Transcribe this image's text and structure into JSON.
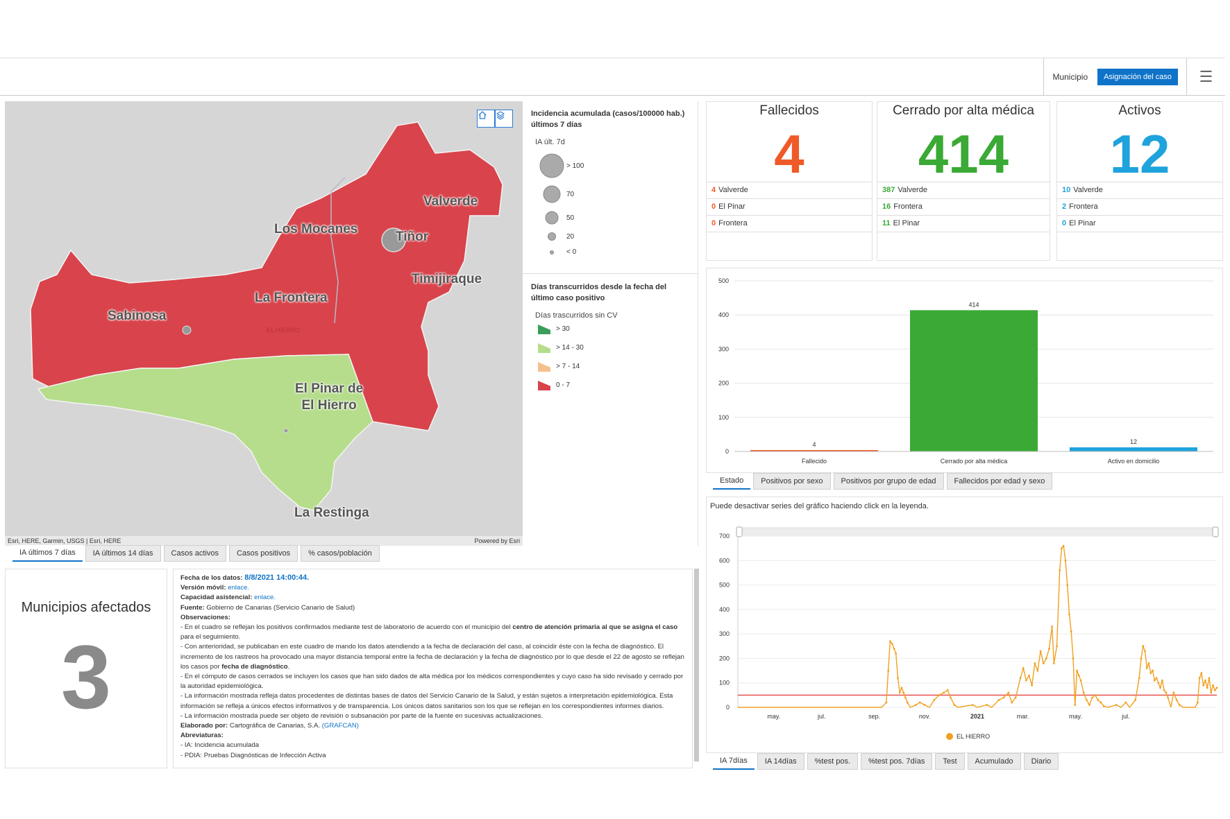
{
  "topbar": {
    "selector_label": "Municipio",
    "selector_button": "Asignación del caso",
    "menu_icon": "hamburger-icon"
  },
  "map": {
    "labels": {
      "valverde": "Valverde",
      "tinor": "Tiñor",
      "los_mocanes": "Los Mocanes",
      "timijiraque": "Timijiraque",
      "la_frontera": "La Frontera",
      "sabinosa": "Sabinosa",
      "el_hierro_small": "EL HIERRO",
      "el_pinar_1": "El Pinar de",
      "el_pinar_2": "El Hierro",
      "la_restinga": "La Restinga"
    },
    "attribution_left": "Esri, HERE, Garmin, USGS | Esri, HERE",
    "attribution_right": "Powered by Esri",
    "colors": {
      "red": "#d9434b",
      "green": "#b5dd8b",
      "water": "#d6d6d6"
    }
  },
  "legend": {
    "incidence_title": "Incidencia acumulada (casos/100000 hab.) últimos 7 días",
    "incidence_sub": "IA últ. 7d",
    "incidence_classes": [
      "> 100",
      "70",
      "50",
      "20",
      "< 0"
    ],
    "days_title": "Días transcurridos desde la fecha del último caso positivo",
    "days_sub": "Días trascurridos sin CV",
    "days_classes": [
      {
        "label": "> 30",
        "color": "#3a9e5a"
      },
      {
        "label": "> 14 - 30",
        "color": "#b5dd8b"
      },
      {
        "label": "> 7 - 14",
        "color": "#f5c08e"
      },
      {
        "label": "0 - 7",
        "color": "#d9434b"
      }
    ]
  },
  "map_tabs": [
    "IA últimos 7 días",
    "IA últimos 14 días",
    "Casos activos",
    "Casos positivos",
    "% casos/población"
  ],
  "indicators": [
    {
      "title": "Fallecidos",
      "value": "4",
      "color": "#f05a28",
      "rows": [
        {
          "n": "4",
          "name": "Valverde"
        },
        {
          "n": "0",
          "name": "El Pinar"
        },
        {
          "n": "0",
          "name": "Frontera"
        }
      ]
    },
    {
      "title": "Cerrado por alta médica",
      "value": "414",
      "color": "#3aa935",
      "rows": [
        {
          "n": "387",
          "name": "Valverde"
        },
        {
          "n": "16",
          "name": "Frontera"
        },
        {
          "n": "11",
          "name": "El Pinar"
        }
      ]
    },
    {
      "title": "Activos",
      "value": "12",
      "color": "#1ea3dc",
      "rows": [
        {
          "n": "10",
          "name": "Valverde"
        },
        {
          "n": "2",
          "name": "Frontera"
        },
        {
          "n": "0",
          "name": "El Pinar"
        }
      ]
    }
  ],
  "municipios": {
    "title": "Municipios afectados",
    "value": "3"
  },
  "info": {
    "fecha_label": "Fecha de los datos:",
    "fecha_value": "8/8/2021 14:00:44.",
    "movil_label": "Versión móvil:",
    "movil_link": "enlace.",
    "capacidad_label": "Capacidad asistencial:",
    "capacidad_link": "enlace.",
    "fuente_label": "Fuente:",
    "fuente_value": "Gobierno de Canarias (Servicio Canario de Salud)",
    "obs_label": "Observaciones:",
    "obs1_a": "- En el cuadro se reflejan los positivos confirmados mediante test de laboratorio de acuerdo con el municipio del ",
    "obs1_b": "centro de atención primaria al que se asigna el caso",
    "obs1_c": " para el seguimiento.",
    "obs2_a": "- Con anterioridad, se publicaban en este cuadro de mando los datos atendiendo a la fecha de declaración del caso, al coincidir éste con la fecha de diagnóstico. El incremento de los rastreos ha provocado una mayor distancia temporal entre la fecha de declaración y la fecha de diagnóstico por lo que desde el 22 de agosto se reflejan los casos por ",
    "obs2_b": "fecha de diagnóstico",
    "obs2_c": ".",
    "obs3": "- En el cómputo de casos cerrados se incluyen los casos que han sido dados de alta médica por los médicos correspondientes y cuyo caso ha sido revisado y cerrado por la autoridad epidemiológica.",
    "obs4": "- La información mostrada refleja datos procedentes de distintas bases de datos del Servicio Canario de la Salud, y están sujetos a interpretación epidemiológica. Esta información se refleja a únicos efectos informativos y de transparencia. Los únicos datos sanitarios son los que se reflejan en los correspondientes informes diarios.",
    "obs5": "- La información mostrada puede ser objeto de revisión o subsanación por parte de la fuente en sucesivas actualizaciones.",
    "elab_label": "Elaborado por:",
    "elab_value": "Cartográfica de Canarias, S.A. ",
    "elab_link": "(GRAFCAN)",
    "abrev_label": "Abreviaturas:",
    "abrev1": "- IA: Incidencia acumulada",
    "abrev2": "- PDIA:  Pruebas Diagnósticas de Infección Activa"
  },
  "bar_tabs": [
    "Estado",
    "Positivos por sexo",
    "Positivos por grupo de edad",
    "Fallecidos por edad y sexo"
  ],
  "line_note": "Puede desactivar series del gráfico haciendo click en la leyenda.",
  "line_tabs": [
    "IA 7días",
    "IA 14días",
    "%test pos.",
    "%test pos. 7días",
    "Test",
    "Acumulado",
    "Diario"
  ],
  "chart_data": [
    {
      "type": "bar",
      "categories": [
        "Fallecido",
        "Cerrado por alta médica",
        "Activo en domicilio"
      ],
      "values": [
        4,
        414,
        12
      ],
      "colors": [
        "#f05a28",
        "#3aa935",
        "#1ea3dc"
      ],
      "ylim": [
        0,
        500
      ],
      "yticks": [
        0,
        100,
        200,
        300,
        400,
        500
      ],
      "grid": true
    },
    {
      "type": "line",
      "series": [
        {
          "name": "EL HIERRO",
          "color": "#f0a020"
        }
      ],
      "xticks": [
        "may.",
        "jul.",
        "sep.",
        "nov.",
        "2021",
        "mar.",
        "may.",
        "jul."
      ],
      "bold_xtick": "2021",
      "ylim": [
        0,
        700
      ],
      "yticks": [
        0,
        100,
        200,
        300,
        400,
        500,
        600,
        700
      ],
      "threshold": 50,
      "threshold_color": "#e53935",
      "values": [
        0,
        0,
        0,
        0,
        0,
        0,
        0,
        0,
        0,
        0,
        0,
        0,
        0,
        0,
        0,
        0,
        0,
        0,
        0,
        0,
        0,
        0,
        0,
        0,
        0,
        0,
        0,
        0,
        0,
        0,
        0,
        0,
        0,
        0,
        0,
        0,
        0,
        0,
        0,
        0,
        0,
        0,
        0,
        0,
        0,
        0,
        0,
        0,
        0,
        0,
        0,
        0,
        0,
        0,
        0,
        0,
        0,
        0,
        0,
        0,
        0,
        0,
        0,
        0,
        0,
        0,
        0,
        0,
        0,
        0,
        0,
        0,
        0,
        0,
        0,
        0,
        0,
        0,
        0,
        0,
        0,
        0,
        0,
        0,
        0,
        0,
        0,
        0,
        0,
        0,
        0,
        0,
        0,
        0,
        0,
        0,
        0,
        0,
        0,
        0,
        0,
        0,
        0,
        0,
        0,
        0,
        0,
        0,
        0,
        0,
        0,
        0,
        0,
        0,
        0,
        0,
        0,
        0,
        0,
        0,
        0,
        0,
        0,
        0,
        0,
        0,
        0,
        0,
        0,
        0,
        0,
        0,
        0,
        0,
        0,
        0,
        0,
        0,
        0,
        0,
        0,
        0,
        0,
        0,
        0,
        0,
        0,
        0,
        0,
        0,
        0,
        0,
        0,
        0,
        0,
        0,
        0,
        0,
        0,
        0,
        0,
        0,
        0,
        0,
        0,
        0,
        0,
        0,
        0,
        0,
        0,
        0,
        0,
        0,
        0,
        0,
        0,
        0,
        0,
        0,
        0,
        0,
        0,
        0,
        0,
        0,
        0,
        0,
        0,
        0,
        0,
        0,
        0,
        0,
        0,
        0,
        0,
        0,
        0,
        0,
        0,
        0,
        0,
        0,
        0,
        0,
        0,
        0,
        0,
        0,
        0,
        0,
        0,
        0,
        0,
        0,
        0,
        0,
        0,
        0,
        0,
        0,
        0,
        0,
        0,
        0,
        0,
        0,
        0,
        0,
        0,
        0,
        0,
        0,
        0,
        0,
        0,
        0,
        0,
        0,
        0,
        0,
        0,
        0,
        0,
        0,
        0,
        0,
        0,
        0,
        0,
        0,
        0,
        0,
        0,
        0,
        0,
        0,
        0,
        0,
        0,
        0,
        0,
        0,
        0,
        0,
        0,
        0,
        0,
        0,
        0,
        0,
        0,
        0,
        0,
        0,
        0,
        0,
        0,
        0,
        0,
        0,
        0,
        0,
        0,
        0,
        0,
        0,
        0,
        0,
        0,
        0,
        0,
        0,
        0,
        0,
        0,
        0,
        0,
        0,
        0,
        0,
        0,
        0,
        0,
        0,
        0,
        0,
        0,
        0,
        0,
        0,
        0,
        0,
        0,
        0,
        0,
        0,
        0,
        0,
        0,
        0,
        0,
        0,
        0,
        0,
        0,
        0,
        0,
        0,
        0,
        0,
        0,
        0,
        0,
        0,
        0,
        0,
        0,
        0,
        0,
        0,
        0,
        0,
        0,
        0,
        0,
        0,
        0,
        0,
        0,
        0,
        0,
        0,
        0,
        0,
        0,
        0,
        0,
        0,
        0,
        0,
        0,
        0,
        0,
        0,
        0,
        0,
        0,
        0,
        0,
        0,
        0,
        0,
        0,
        0,
        0,
        0,
        0,
        0,
        0,
        0,
        0,
        0,
        0,
        0,
        0,
        0,
        0,
        0,
        0,
        0,
        0,
        0,
        0,
        0,
        0,
        0,
        0,
        0,
        0,
        0,
        0,
        0,
        0,
        0,
        0,
        0,
        0,
        0,
        0,
        0,
        0,
        0,
        0,
        0,
        0,
        0,
        0,
        0,
        0,
        0,
        0,
        0,
        0,
        0,
        0,
        0,
        0,
        0,
        0,
        0,
        0,
        0,
        0,
        0,
        0,
        0,
        0,
        0,
        0,
        0,
        0,
        0,
        0,
        0,
        0,
        0,
        0,
        0,
        0,
        0,
        0,
        0,
        0,
        0,
        0,
        0,
        0,
        0,
        0,
        0,
        0,
        0,
        0,
        0,
        0,
        0,
        0,
        0,
        0,
        0,
        0,
        0,
        0,
        0,
        0,
        0,
        0,
        0,
        0,
        0,
        0,
        0,
        0,
        0,
        0,
        0,
        0,
        0,
        0,
        0,
        0,
        0,
        0,
        0,
        0,
        0,
        0,
        0,
        0,
        0,
        0,
        0,
        0,
        0,
        0,
        0,
        0,
        0,
        0,
        0,
        0,
        0,
        0,
        0,
        0,
        0,
        0,
        0,
        0,
        0,
        0,
        0,
        0,
        0,
        0,
        0,
        0,
        0,
        0,
        0,
        0,
        0,
        0,
        0,
        0,
        0,
        0,
        0,
        0,
        0,
        0,
        0,
        0,
        0,
        0,
        0,
        0,
        0,
        0,
        0,
        0,
        0,
        0,
        0,
        0,
        0,
        0,
        0,
        0,
        0,
        0,
        0,
        0,
        0,
        0,
        0,
        0,
        0,
        0,
        0,
        0,
        0,
        0,
        0,
        0,
        0,
        0,
        0,
        0,
        0,
        0,
        0,
        0,
        0,
        0,
        0,
        0,
        0,
        0,
        0,
        0,
        0,
        0,
        0,
        0,
        0,
        0,
        0,
        0,
        0,
        0,
        0,
        0,
        0,
        0,
        0,
        0,
        0,
        0,
        0
      ],
      "points": [
        [
          0,
          0
        ],
        [
          0.3,
          0
        ],
        [
          0.31,
          20
        ],
        [
          0.314,
          150
        ],
        [
          0.318,
          270
        ],
        [
          0.322,
          260
        ],
        [
          0.326,
          240
        ],
        [
          0.33,
          220
        ],
        [
          0.334,
          120
        ],
        [
          0.338,
          60
        ],
        [
          0.342,
          80
        ],
        [
          0.346,
          60
        ],
        [
          0.35,
          40
        ],
        [
          0.354,
          20
        ],
        [
          0.36,
          0
        ],
        [
          0.372,
          10
        ],
        [
          0.38,
          20
        ],
        [
          0.39,
          10
        ],
        [
          0.4,
          0
        ],
        [
          0.41,
          30
        ],
        [
          0.42,
          50
        ],
        [
          0.43,
          60
        ],
        [
          0.438,
          70
        ],
        [
          0.444,
          40
        ],
        [
          0.452,
          10
        ],
        [
          0.46,
          0
        ],
        [
          0.49,
          10
        ],
        [
          0.5,
          0
        ],
        [
          0.52,
          10
        ],
        [
          0.53,
          0
        ],
        [
          0.545,
          30
        ],
        [
          0.555,
          40
        ],
        [
          0.565,
          60
        ],
        [
          0.572,
          20
        ],
        [
          0.58,
          40
        ],
        [
          0.59,
          120
        ],
        [
          0.596,
          160
        ],
        [
          0.602,
          110
        ],
        [
          0.608,
          130
        ],
        [
          0.614,
          90
        ],
        [
          0.62,
          180
        ],
        [
          0.626,
          150
        ],
        [
          0.632,
          230
        ],
        [
          0.638,
          180
        ],
        [
          0.644,
          200
        ],
        [
          0.65,
          240
        ],
        [
          0.656,
          330
        ],
        [
          0.66,
          180
        ],
        [
          0.666,
          250
        ],
        [
          0.672,
          560
        ],
        [
          0.676,
          650
        ],
        [
          0.68,
          660
        ],
        [
          0.684,
          600
        ],
        [
          0.688,
          500
        ],
        [
          0.692,
          380
        ],
        [
          0.696,
          310
        ],
        [
          0.7,
          200
        ],
        [
          0.704,
          10
        ],
        [
          0.708,
          150
        ],
        [
          0.712,
          130
        ],
        [
          0.716,
          110
        ],
        [
          0.722,
          60
        ],
        [
          0.728,
          30
        ],
        [
          0.734,
          10
        ],
        [
          0.74,
          40
        ],
        [
          0.746,
          50
        ],
        [
          0.752,
          30
        ],
        [
          0.758,
          20
        ],
        [
          0.764,
          5
        ],
        [
          0.772,
          0
        ],
        [
          0.79,
          10
        ],
        [
          0.8,
          0
        ],
        [
          0.81,
          20
        ],
        [
          0.818,
          0
        ],
        [
          0.83,
          30
        ],
        [
          0.838,
          120
        ],
        [
          0.842,
          200
        ],
        [
          0.846,
          250
        ],
        [
          0.85,
          230
        ],
        [
          0.854,
          160
        ],
        [
          0.858,
          180
        ],
        [
          0.862,
          140
        ],
        [
          0.866,
          150
        ],
        [
          0.87,
          110
        ],
        [
          0.874,
          120
        ],
        [
          0.878,
          100
        ],
        [
          0.882,
          80
        ],
        [
          0.886,
          110
        ],
        [
          0.89,
          70
        ],
        [
          0.894,
          60
        ],
        [
          0.898,
          40
        ],
        [
          0.904,
          0
        ],
        [
          0.91,
          60
        ],
        [
          0.916,
          30
        ],
        [
          0.922,
          10
        ],
        [
          0.93,
          0
        ],
        [
          0.955,
          0
        ],
        [
          0.96,
          20
        ],
        [
          0.964,
          120
        ],
        [
          0.968,
          140
        ],
        [
          0.972,
          90
        ],
        [
          0.976,
          110
        ],
        [
          0.98,
          80
        ],
        [
          0.984,
          120
        ],
        [
          0.988,
          60
        ],
        [
          0.992,
          90
        ],
        [
          0.996,
          70
        ],
        [
          1.0,
          80
        ]
      ]
    }
  ]
}
